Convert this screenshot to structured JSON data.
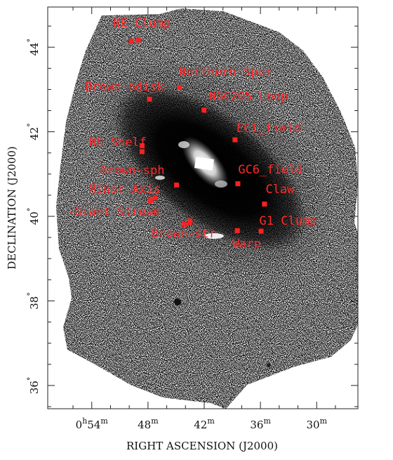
{
  "chart_data": {
    "type": "scatter",
    "title": "",
    "xlabel": "RIGHT ASCENSION (J2000)",
    "ylabel": "DECLINATION (J2000)",
    "x_unit": "minutes of RA (h = 0)",
    "xlim": [
      58.7,
      25.6
    ],
    "ylim": [
      35.45,
      44.95
    ],
    "x_ticks": [
      {
        "value": 54,
        "hours": "0",
        "minutes": "54",
        "show_hours": true
      },
      {
        "value": 48,
        "hours": "",
        "minutes": "48",
        "show_hours": false
      },
      {
        "value": 42,
        "hours": "",
        "minutes": "42",
        "show_hours": false
      },
      {
        "value": 36,
        "hours": "",
        "minutes": "36",
        "show_hours": false
      },
      {
        "value": 30,
        "hours": "",
        "minutes": "30",
        "show_hours": false
      }
    ],
    "y_ticks": [
      {
        "value": 44,
        "label": "44"
      },
      {
        "value": 42,
        "label": "42"
      },
      {
        "value": 40,
        "label": "40"
      },
      {
        "value": 38,
        "label": "38"
      },
      {
        "value": 36,
        "label": "36"
      }
    ],
    "grid": false,
    "background": "grayscale stellar density map of the Andromeda galaxy region",
    "marker_color": "#ff2020",
    "fields": [
      {
        "name": "NE Clump",
        "points": [
          [
            49.79,
            44.14
          ],
          [
            49.05,
            44.17
          ]
        ]
      },
      {
        "name": "Northern Spur",
        "points": [
          [
            44.63,
            43.05
          ]
        ]
      },
      {
        "name": "Brown-odisk",
        "points": [
          [
            47.83,
            42.77
          ]
        ]
      },
      {
        "name": "NGC205 Loop",
        "points": [
          [
            42.02,
            42.51
          ]
        ]
      },
      {
        "name": "EC1_field",
        "points": [
          [
            38.71,
            41.81
          ]
        ]
      },
      {
        "name": "NE Shelf",
        "points": [
          [
            48.63,
            41.67
          ],
          [
            48.63,
            41.53
          ]
        ]
      },
      {
        "name": "Brown-sph",
        "points": [
          [
            44.95,
            40.74
          ]
        ]
      },
      {
        "name": "GC6_field",
        "points": [
          [
            38.41,
            40.77
          ]
        ]
      },
      {
        "name": "Claw",
        "points": [
          [
            35.57,
            40.29
          ]
        ]
      },
      {
        "name": "Minor Axis",
        "points": [
          [
            47.72,
            40.37
          ],
          [
            47.24,
            40.44
          ]
        ]
      },
      {
        "name": "Giant Stream",
        "points": [
          [
            44.12,
            39.81
          ],
          [
            43.53,
            39.85
          ],
          [
            43.53,
            39.89
          ]
        ]
      },
      {
        "name": "G1 Clump",
        "points": [
          [
            35.93,
            39.65
          ]
        ]
      },
      {
        "name": "Brown-str",
        "points": [
          [
            43.53,
            39.89
          ]
        ]
      },
      {
        "name": "Warp",
        "points": [
          [
            38.47,
            39.66
          ]
        ]
      }
    ],
    "labels": [
      {
        "text": "NE Clump",
        "ra": 51.72,
        "dec": 44.48
      },
      {
        "text": "Northern Spur",
        "ra": 44.7,
        "dec": 43.32
      },
      {
        "text": "Brown-odisk",
        "ra": 54.72,
        "dec": 42.97
      },
      {
        "text": "NGC205 Loop",
        "ra": 41.49,
        "dec": 42.75
      },
      {
        "text": "EC1_field",
        "ra": 38.56,
        "dec": 41.99
      },
      {
        "text": "NE Shelf",
        "ra": 54.28,
        "dec": 41.66
      },
      {
        "text": "Brown-sph",
        "ra": 53.13,
        "dec": 41.0
      },
      {
        "text": "GC6_field",
        "ra": 38.38,
        "dec": 41.01
      },
      {
        "text": "Claw",
        "ra": 35.45,
        "dec": 40.55
      },
      {
        "text": "Minor Axis",
        "ra": 54.33,
        "dec": 40.55
      },
      {
        "text": "-Giant Stream",
        "ra": 56.62,
        "dec": 40.02
      },
      {
        "text": "G1 Clump",
        "ra": 36.12,
        "dec": 39.8
      },
      {
        "text": "Brown-str",
        "ra": 47.63,
        "dec": 39.5
      },
      {
        "text": "Warp",
        "ra": 39.01,
        "dec": 39.26
      }
    ]
  }
}
